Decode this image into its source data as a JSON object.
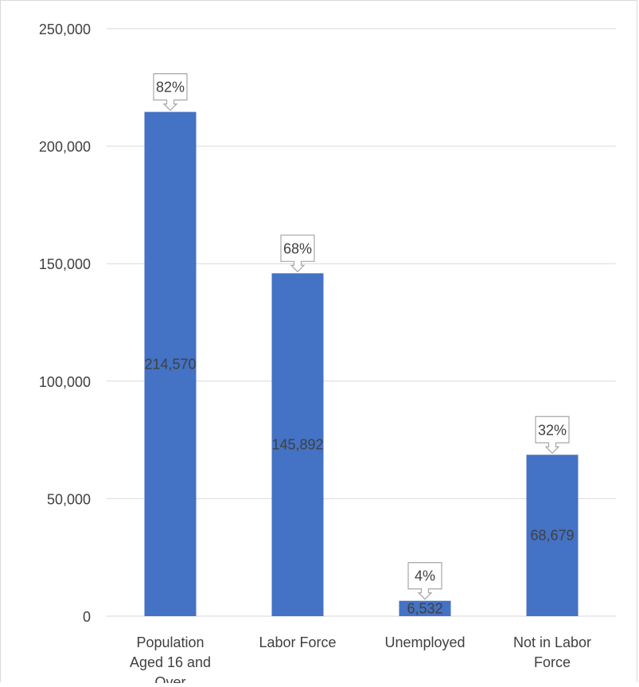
{
  "chart_data": {
    "type": "bar",
    "title": "",
    "xlabel": "",
    "ylabel": "",
    "ylim": [
      0,
      250000
    ],
    "yticks": [
      0,
      50000,
      100000,
      150000,
      200000,
      250000
    ],
    "ytick_labels": [
      "0",
      "50,000",
      "100,000",
      "150,000",
      "200,000",
      "250,000"
    ],
    "categories": [
      [
        "Population",
        "Aged 16 and",
        "Over"
      ],
      [
        "Labor Force"
      ],
      [
        "Unemployed"
      ],
      [
        "Not in Labor",
        "Force"
      ]
    ],
    "values": [
      214570,
      145892,
      6532,
      68679
    ],
    "value_labels": [
      "214,570",
      "145,892",
      "6,532",
      "68,679"
    ],
    "percent_callouts": [
      "82%",
      "68%",
      "4%",
      "32%"
    ],
    "grid": true,
    "legend": "none",
    "colors": {
      "bar": "#4472c4",
      "grid": "#d9d9d9",
      "axis_text": "#404040",
      "value_label": "#404040",
      "callout_border": "#a6a6a6"
    }
  }
}
